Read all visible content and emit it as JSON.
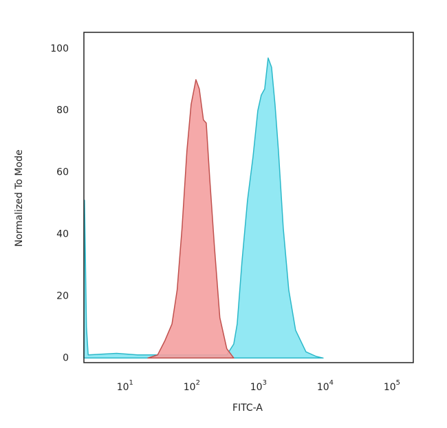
{
  "chart_data": {
    "type": "area",
    "x_label": "FITC-A",
    "y_label": "Normalized To Mode",
    "xscale": "log",
    "xlim": [
      2.2,
      190000
    ],
    "ylim": [
      -1.5,
      105.3
    ],
    "xticks": [
      {
        "value": 10,
        "label": "10",
        "exponent": "1"
      },
      {
        "value": 100,
        "label": "10",
        "exponent": "2"
      },
      {
        "value": 1000,
        "label": "10",
        "exponent": "3"
      },
      {
        "value": 10000,
        "label": "10",
        "exponent": "4"
      },
      {
        "value": 100000,
        "label": "10",
        "exponent": "5"
      }
    ],
    "yticks": [
      0,
      20,
      40,
      60,
      80,
      100
    ],
    "grid": false,
    "series": [
      {
        "color": "#2bb8c9",
        "fill": "#86e6f2",
        "x": [
          2.2,
          2.25,
          2.4,
          2.55,
          6.8,
          14,
          305,
          387,
          436,
          514,
          622,
          752,
          888,
          1000,
          1127,
          1269,
          1429,
          1608,
          1811,
          2139,
          2584,
          3273,
          4677,
          6683,
          8474
        ],
        "values": [
          0,
          51,
          10,
          1,
          1.5,
          1,
          1,
          4.5,
          11,
          31,
          51,
          65,
          80,
          85,
          87,
          97,
          94,
          82,
          67,
          42,
          22,
          9,
          2,
          0.5,
          0
        ]
      },
      {
        "color": "#c0504d",
        "fill": "#f4a0a0",
        "x": [
          20,
          28,
          36,
          46,
          55,
          65,
          77,
          89,
          105,
          118,
          136,
          150,
          169,
          199,
          240,
          305,
          387
        ],
        "values": [
          0,
          1,
          5.6,
          11,
          22,
          42,
          67,
          82,
          90,
          87,
          77,
          76,
          58,
          36,
          13,
          3,
          0
        ]
      }
    ]
  }
}
